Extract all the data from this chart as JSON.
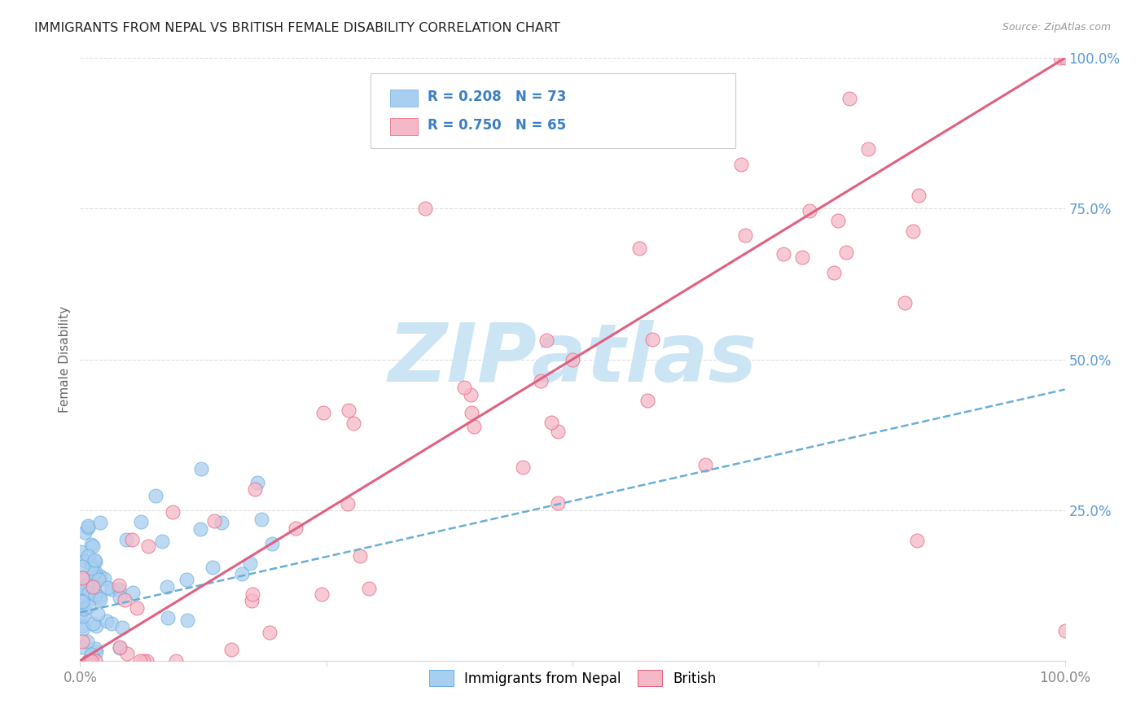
{
  "title": "IMMIGRANTS FROM NEPAL VS BRITISH FEMALE DISABILITY CORRELATION CHART",
  "source": "Source: ZipAtlas.com",
  "ylabel": "Female Disability",
  "legend_label1": "Immigrants from Nepal",
  "legend_label2": "British",
  "R1": "R = 0.208",
  "N1": "N = 73",
  "R2": "R = 0.750",
  "N2": "N = 65",
  "color_blue": "#a8cef0",
  "color_blue_edge": "#6aaee0",
  "color_pink": "#f5b8c8",
  "color_pink_edge": "#e8607a",
  "color_trendline_blue": "#6aaed6",
  "color_trendline_pink": "#e06080",
  "watermark_color": "#cce5f5",
  "background_color": "#ffffff",
  "grid_color": "#dddddd",
  "tick_color_right": "#5b9bd5",
  "tick_color_x": "#888888"
}
